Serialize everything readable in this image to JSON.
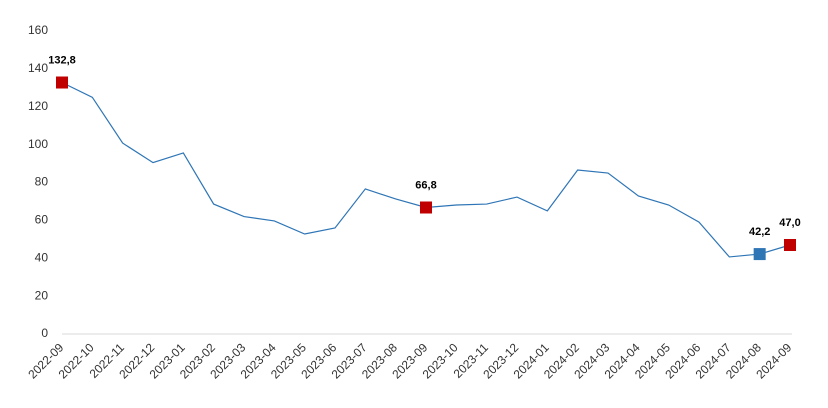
{
  "chart_data": {
    "type": "line",
    "categories": [
      "2022-09",
      "2022-10",
      "2022-11",
      "2022-12",
      "2023-01",
      "2023-02",
      "2023-03",
      "2023-04",
      "2023-05",
      "2023-06",
      "2023-07",
      "2023-08",
      "2023-09",
      "2023-10",
      "2023-11",
      "2023-12",
      "2024-01",
      "2024-02",
      "2024-03",
      "2024-04",
      "2024-05",
      "2024-06",
      "2024-07",
      "2024-08",
      "2024-09"
    ],
    "series": [
      {
        "color": "#2e75b6",
        "values": [
          132.8,
          125,
          100.8,
          90.5,
          95.6,
          68.6,
          62,
          59.7,
          52.8,
          56,
          76.6,
          71.3,
          66.8,
          68.1,
          68.6,
          72.3,
          65,
          86.6,
          85,
          72.9,
          68.1,
          59.1,
          40.7,
          42.2,
          47.0
        ],
        "value_labels": [
          "132,8",
          null,
          null,
          null,
          null,
          null,
          null,
          null,
          null,
          null,
          null,
          null,
          "66,8",
          null,
          null,
          null,
          null,
          null,
          null,
          null,
          null,
          null,
          null,
          "42,2",
          "47,0"
        ],
        "marker_colors": [
          "#c00000",
          null,
          null,
          null,
          null,
          null,
          null,
          null,
          null,
          null,
          null,
          null,
          "#c00000",
          null,
          null,
          null,
          null,
          null,
          null,
          null,
          null,
          null,
          null,
          "#2e75b6",
          "#c00000"
        ]
      }
    ],
    "ylim": [
      0,
      160
    ],
    "yticks": [
      0,
      20,
      40,
      60,
      80,
      100,
      120,
      140,
      160
    ],
    "grid": false
  }
}
